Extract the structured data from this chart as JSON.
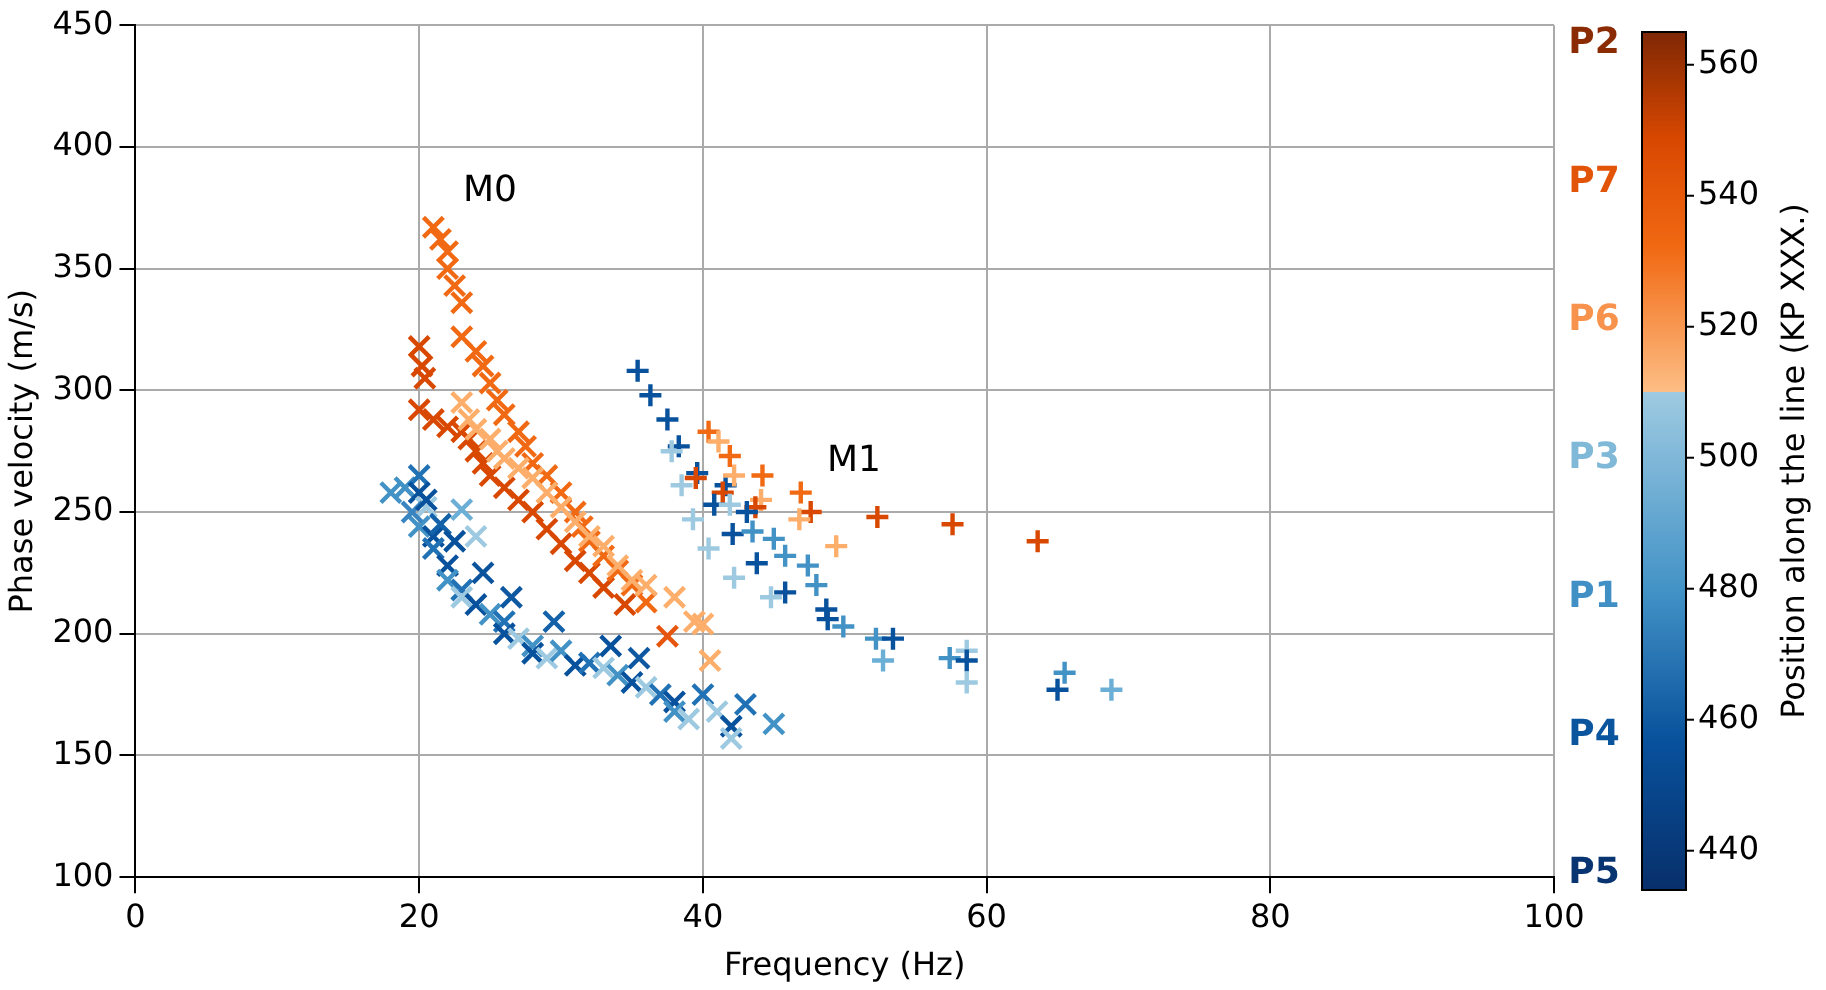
{
  "chart_data": {
    "type": "scatter",
    "xlabel": "Frequency (Hz)",
    "ylabel": "Phase velocity (m/s)",
    "clabel": "Position along the line (KP XXX.)",
    "xlim": [
      0,
      100
    ],
    "xticks": [
      0,
      20,
      40,
      60,
      80,
      100
    ],
    "ylim": [
      100,
      450
    ],
    "yticks": [
      100,
      150,
      200,
      250,
      300,
      350,
      400,
      450
    ],
    "clim": [
      434,
      565
    ],
    "cticks": [
      440,
      460,
      480,
      500,
      520,
      540,
      560
    ],
    "grid": true,
    "legend": false,
    "annotations": [
      "M0",
      "M1",
      "P2",
      "P7",
      "P6",
      "P3",
      "P1",
      "P4",
      "P5"
    ],
    "series": [
      {
        "marker": "x",
        "x": [
          20,
          20.2,
          20.4,
          20,
          21,
          22,
          23,
          23.5,
          24,
          24.5,
          25,
          26,
          27,
          28,
          29,
          30,
          31,
          32,
          33,
          34.5,
          21,
          21.5,
          22,
          22,
          22.5,
          23,
          23,
          24,
          24.5,
          25,
          25.5,
          26,
          27,
          27.5,
          28,
          29,
          30,
          31,
          31.5,
          32,
          33,
          34,
          35,
          36,
          37.5,
          23,
          23.5,
          24,
          25,
          25.5,
          26,
          27,
          28,
          29,
          30,
          31,
          32,
          33,
          34,
          35,
          36,
          38,
          40,
          39.4,
          40.5,
          18,
          19,
          20,
          20,
          20.5,
          20,
          21,
          21,
          22,
          22,
          23,
          23,
          24,
          25,
          26,
          26,
          27,
          28,
          28,
          29,
          30,
          31,
          32,
          33,
          34,
          35,
          36,
          37,
          38,
          38,
          39,
          40,
          41,
          42,
          42,
          43,
          45,
          23,
          24,
          19.5,
          20.5,
          21.5,
          22.5,
          24.5,
          26.5,
          29.5,
          33.5,
          35.5
        ],
        "values": [
          318,
          310,
          305,
          292,
          288,
          285,
          283,
          280,
          275,
          270,
          265,
          260,
          255,
          250,
          243,
          237,
          230,
          225,
          219,
          212,
          367,
          362,
          357,
          350,
          343,
          336,
          322,
          316,
          310,
          303,
          296,
          290,
          283,
          277,
          270,
          265,
          258,
          250,
          244,
          238,
          232,
          226,
          220,
          213,
          199,
          295,
          288,
          284,
          280,
          275,
          272,
          268,
          264,
          258,
          252,
          246,
          240,
          236,
          228,
          222,
          220,
          215,
          204,
          205,
          189,
          258,
          260,
          265,
          258,
          252,
          244,
          240,
          235,
          228,
          222,
          218,
          215,
          212,
          208,
          205,
          200,
          198,
          195,
          192,
          190,
          193,
          187,
          188,
          186,
          183,
          180,
          178,
          175,
          172,
          168,
          165,
          175,
          168,
          162,
          157,
          171,
          163,
          251,
          240,
          250,
          255,
          245,
          238,
          225,
          215,
          205,
          195,
          190
        ],
        "colors": [
          "#d94801",
          "#d94801",
          "#d94801",
          "#d94801",
          "#d94801",
          "#d94801",
          "#d94801",
          "#d94801",
          "#d94801",
          "#d94801",
          "#d94801",
          "#d94801",
          "#d94801",
          "#d94801",
          "#d94801",
          "#d94801",
          "#d94801",
          "#d94801",
          "#d94801",
          "#d94801",
          "#f16913",
          "#f16913",
          "#f16913",
          "#f16913",
          "#f16913",
          "#f16913",
          "#f16913",
          "#f16913",
          "#f16913",
          "#f16913",
          "#f16913",
          "#f16913",
          "#f16913",
          "#f16913",
          "#f16913",
          "#f16913",
          "#f16913",
          "#f16913",
          "#f16913",
          "#f16913",
          "#f16913",
          "#f16913",
          "#f16913",
          "#f16913",
          "#e6550d",
          "#fdae6b",
          "#fdae6b",
          "#fdae6b",
          "#fdae6b",
          "#fdae6b",
          "#fdae6b",
          "#fdae6b",
          "#fdae6b",
          "#fdae6b",
          "#fdae6b",
          "#fdae6b",
          "#fdae6b",
          "#fdae6b",
          "#fdae6b",
          "#fdae6b",
          "#fdae6b",
          "#fdae6b",
          "#fdae6b",
          "#fdae6b",
          "#fdae6b",
          "#4292c6",
          "#4292c6",
          "#2171b5",
          "#08519c",
          "#9ecae1",
          "#4292c6",
          "#08519c",
          "#2171b5",
          "#08519c",
          "#4292c6",
          "#2171b5",
          "#9ecae1",
          "#08519c",
          "#4292c6",
          "#2171b5",
          "#08519c",
          "#9ecae1",
          "#4292c6",
          "#08519c",
          "#9ecae1",
          "#4292c6",
          "#08519c",
          "#2171b5",
          "#9ecae1",
          "#4292c6",
          "#08519c",
          "#9ecae1",
          "#2171b5",
          "#08519c",
          "#4292c6",
          "#9ecae1",
          "#2171b5",
          "#9ecae1",
          "#08519c",
          "#9ecae1",
          "#2171b5",
          "#4292c6",
          "#6baed6",
          "#9ecae1",
          "#3a85c0",
          "#08519c",
          "#1361a9",
          "#08519c",
          "#0b549d",
          "#0d58a1",
          "#1361a9",
          "#08519c",
          "#0d58a1"
        ]
      },
      {
        "marker": "cross",
        "x": [
          35.4,
          36.3,
          37.5,
          38.3,
          37.8,
          39.6,
          39.5,
          38.5,
          40.4,
          41.1,
          41.9,
          41.6,
          41.4,
          42.2,
          40.8,
          41.9,
          44.2,
          44.1,
          43.7,
          43.1,
          39.3,
          42.1,
          43.5,
          46.9,
          47.6,
          46.8,
          52.3,
          57.6,
          63.6,
          49.4,
          45.0,
          45.8,
          40.4,
          43.8,
          47.4,
          48.0,
          42.2,
          45.8,
          44.8,
          48.7,
          48.8,
          49.9,
          52.2,
          53.4,
          52.7,
          57.4,
          58.6,
          58.6,
          58.6,
          65.5,
          65.0,
          68.8
        ],
        "values": [
          308,
          298,
          288,
          277,
          275,
          266,
          264,
          261,
          283,
          279,
          273,
          261,
          258,
          265,
          253,
          253,
          265,
          255,
          252,
          250,
          247,
          241,
          242,
          258,
          250,
          247,
          248,
          245,
          238,
          236,
          239,
          232,
          235,
          229,
          228,
          220,
          223,
          217,
          215,
          210,
          206,
          203,
          198,
          198,
          189,
          190,
          193,
          189,
          180,
          184,
          177,
          177
        ],
        "colors": [
          "#08519c",
          "#08519c",
          "#08519c",
          "#08519c",
          "#9ecae1",
          "#08519c",
          "#d94801",
          "#9ecae1",
          "#f16913",
          "#fdae6b",
          "#f16913",
          "#08519c",
          "#d94801",
          "#fdae6b",
          "#08519c",
          "#9ecae1",
          "#f16913",
          "#fdae6b",
          "#d94801",
          "#08519c",
          "#9ecae1",
          "#08519c",
          "#4292c6",
          "#f16913",
          "#d94801",
          "#fdae6b",
          "#d94801",
          "#d94801",
          "#d94801",
          "#fdae6b",
          "#4292c6",
          "#4292c6",
          "#9ecae1",
          "#08519c",
          "#4292c6",
          "#4292c6",
          "#9ecae1",
          "#08519c",
          "#9ecae1",
          "#08519c",
          "#08519c",
          "#4292c6",
          "#4292c6",
          "#08519c",
          "#6baed6",
          "#4292c6",
          "#9ecae1",
          "#08519c",
          "#9ecae1",
          "#4292c6",
          "#08519c",
          "#6baed6"
        ]
      }
    ]
  }
}
